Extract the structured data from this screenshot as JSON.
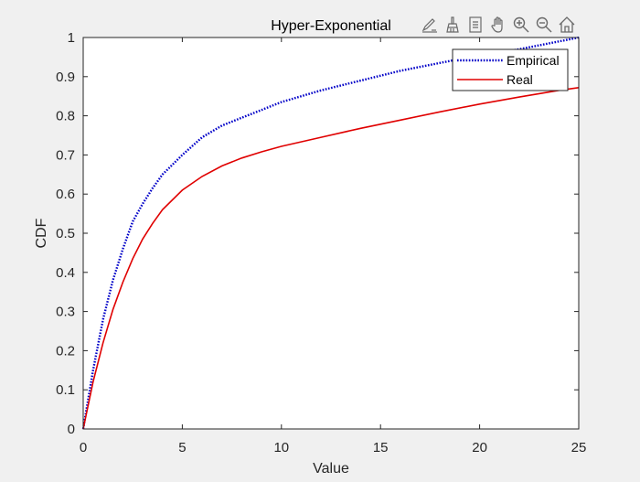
{
  "toolbar": {
    "icons": [
      "edit-icon",
      "brush-icon",
      "legend-icon",
      "pan-icon",
      "zoom-in-icon",
      "zoom-out-icon",
      "home-icon"
    ]
  },
  "colors": {
    "background": "#f0f0f0",
    "axes_background": "#ffffff",
    "empirical": "#0000c8",
    "real": "#e00000",
    "axis": "#262626",
    "toolbar_icon": "#6a6a6a"
  },
  "chart_data": {
    "type": "line",
    "title": "Hyper-Exponential",
    "xlabel": "Value",
    "ylabel": "CDF",
    "xlim": [
      0,
      25
    ],
    "ylim": [
      0,
      1
    ],
    "xticks": [
      0,
      5,
      10,
      15,
      20,
      25
    ],
    "yticks": [
      0,
      0.1,
      0.2,
      0.3,
      0.4,
      0.5,
      0.6,
      0.7,
      0.8,
      0.9,
      1
    ],
    "ytick_labels": [
      "0",
      "0.1",
      "0.2",
      "0.3",
      "0.4",
      "0.5",
      "0.6",
      "0.7",
      "0.8",
      "0.9",
      "1"
    ],
    "grid": false,
    "legend_position": "top-right",
    "series": [
      {
        "name": "Empirical",
        "style": "dotted",
        "x": [
          0,
          0.5,
          1,
          1.5,
          2,
          2.5,
          3,
          3.5,
          4,
          5,
          6,
          7,
          8,
          9,
          10,
          12,
          14,
          16,
          18,
          20,
          22,
          24,
          25
        ],
        "y": [
          0,
          0.15,
          0.28,
          0.38,
          0.46,
          0.53,
          0.575,
          0.615,
          0.65,
          0.7,
          0.745,
          0.775,
          0.795,
          0.815,
          0.835,
          0.865,
          0.89,
          0.915,
          0.935,
          0.955,
          0.97,
          0.99,
          1.0
        ]
      },
      {
        "name": "Real",
        "style": "solid",
        "x": [
          0,
          0.5,
          1,
          1.5,
          2,
          2.5,
          3,
          3.5,
          4,
          5,
          6,
          7,
          8,
          9,
          10,
          12,
          14,
          16,
          18,
          20,
          22,
          24,
          25
        ],
        "y": [
          0,
          0.12,
          0.22,
          0.305,
          0.375,
          0.435,
          0.485,
          0.525,
          0.56,
          0.61,
          0.645,
          0.672,
          0.692,
          0.708,
          0.722,
          0.745,
          0.768,
          0.789,
          0.81,
          0.83,
          0.848,
          0.865,
          0.872
        ]
      }
    ]
  }
}
